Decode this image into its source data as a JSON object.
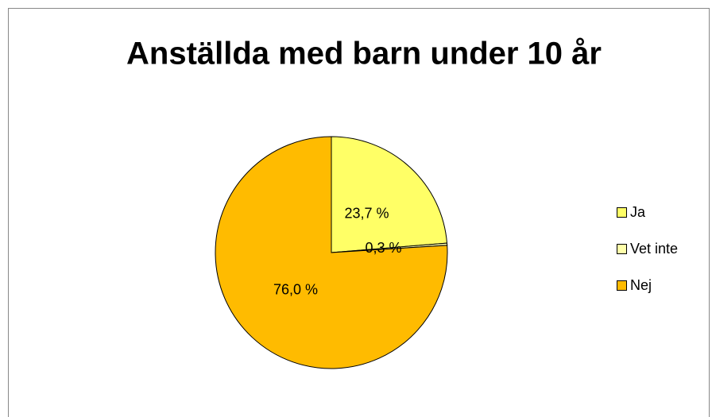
{
  "chart_data": {
    "type": "pie",
    "title": "Anställda med barn under 10 år",
    "categories": [
      "Ja",
      "Vet inte",
      "Nej"
    ],
    "values": [
      23.7,
      0.3,
      76.0
    ],
    "value_labels": [
      "23,7 %",
      "0,3 %",
      "76,0 %"
    ],
    "colors": [
      "#ffff66",
      "#ffffaa",
      "#ffbb00"
    ],
    "legend": "right"
  }
}
